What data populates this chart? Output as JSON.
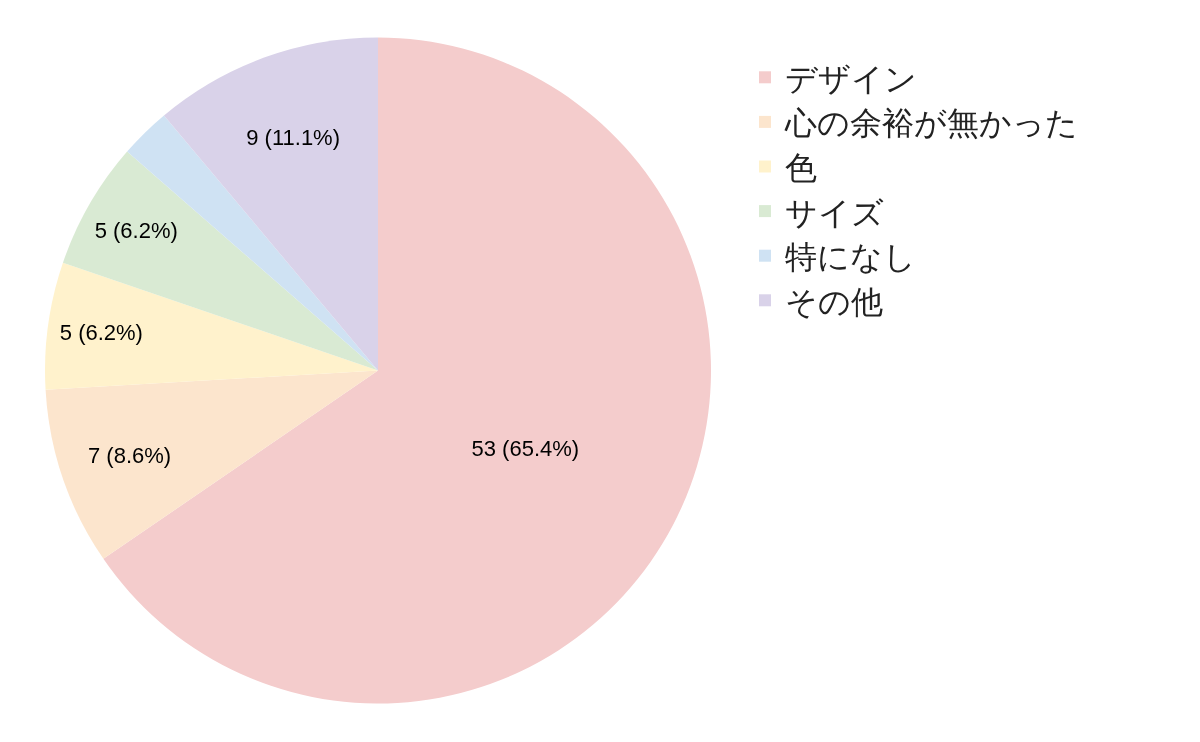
{
  "chart_data": {
    "type": "pie",
    "categories": [
      "デザイン",
      "心の余裕が無かった",
      "色",
      "サイズ",
      "特になし",
      "その他"
    ],
    "values": [
      53,
      7,
      5,
      5,
      2,
      9
    ],
    "colors": [
      "#f4cccc",
      "#fce5cd",
      "#fff2cc",
      "#d9ead3",
      "#cfe2f3",
      "#d9d2e9"
    ],
    "value_labels": [
      "53 (65.4%)",
      "7 (8.6%)",
      "5 (6.2%)",
      "5 (6.2%)",
      null,
      "9 (11.1%)"
    ],
    "legend": "top right"
  }
}
